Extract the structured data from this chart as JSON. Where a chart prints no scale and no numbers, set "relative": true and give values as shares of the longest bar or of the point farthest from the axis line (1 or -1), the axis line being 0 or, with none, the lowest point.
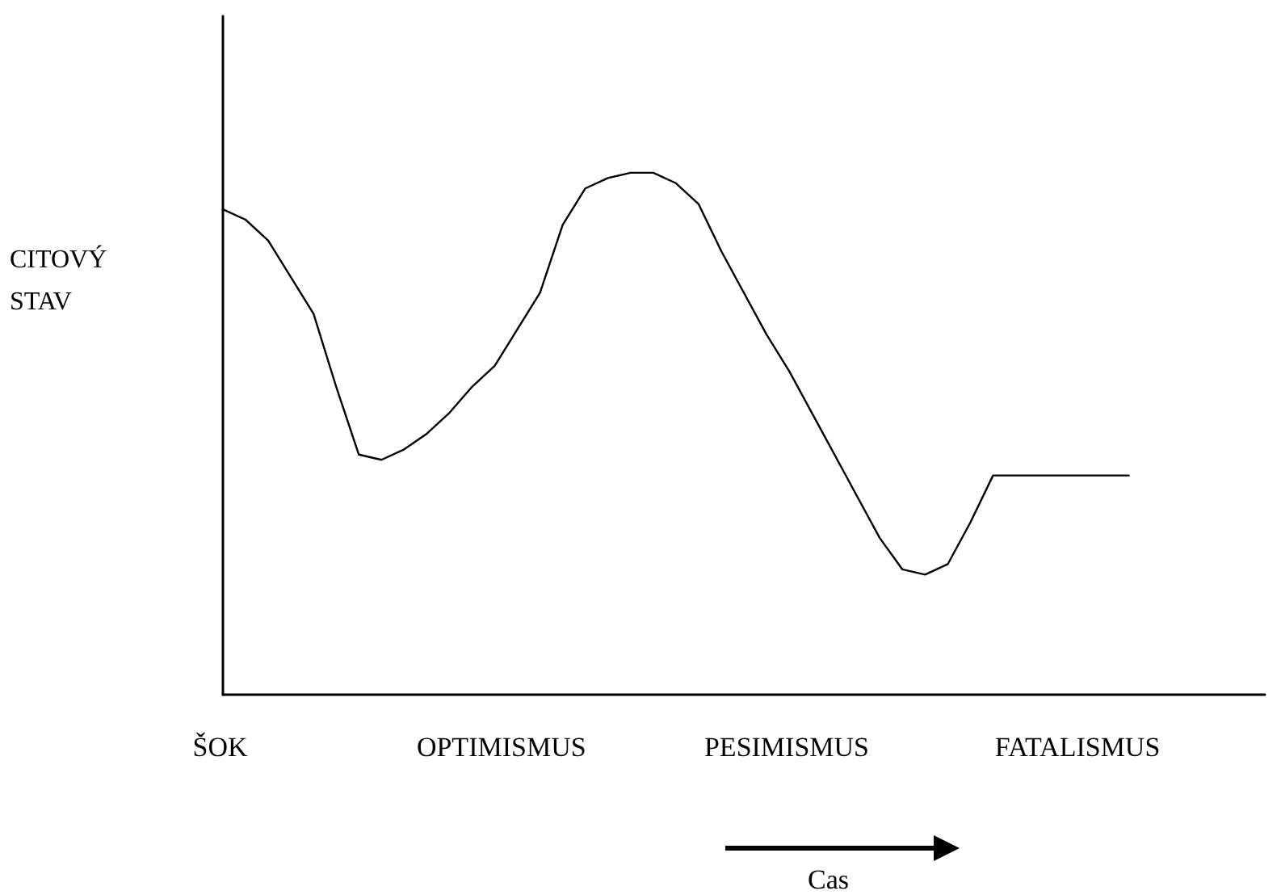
{
  "chart_data": {
    "type": "line",
    "relative": true,
    "ylabel": "CITOVÝ STAV",
    "color": "#000000",
    "marker": "none",
    "line_style": "solid",
    "categories": [
      null,
      null,
      null,
      null,
      null,
      null,
      null,
      null,
      null,
      null,
      null,
      null,
      null,
      null,
      null,
      null,
      null,
      null,
      null,
      null,
      null,
      null,
      null,
      null,
      null,
      null,
      null,
      null,
      null,
      null,
      null,
      null,
      null,
      null,
      null,
      null,
      null,
      null,
      null,
      null,
      null,
      null,
      null,
      null,
      null,
      null,
      null
    ],
    "values": [
      0.93,
      0.91,
      0.87,
      0.8,
      0.73,
      0.59,
      0.46,
      0.45,
      0.47,
      0.5,
      0.54,
      0.59,
      0.63,
      0.7,
      0.77,
      0.9,
      0.97,
      0.99,
      1,
      1,
      0.98,
      0.94,
      0.85,
      0.77,
      0.69,
      0.62,
      0.54,
      0.46,
      0.38,
      0.3,
      0.24,
      0.23,
      0.25,
      0.33,
      0.42,
      0.42,
      0.42,
      0.42,
      0.42,
      0.42,
      0.42,
      null,
      null,
      null,
      null,
      null,
      null
    ],
    "annotations": [
      "ŠOK",
      "OPTIMISMUS",
      "PESIMISMUS",
      "FATALISMUS",
      "Cas"
    ]
  }
}
